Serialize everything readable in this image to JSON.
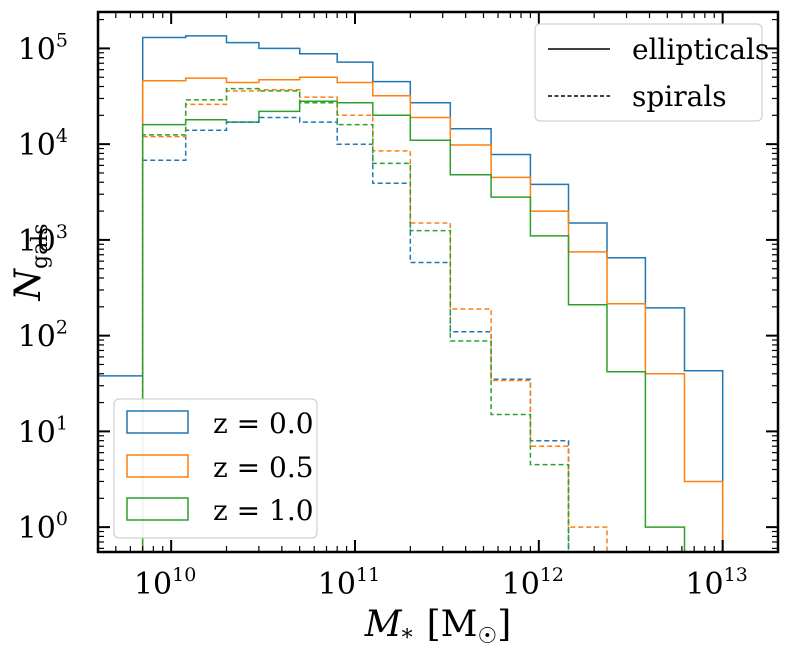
{
  "chart_data": {
    "type": "step-histogram",
    "xscale": "log",
    "yscale": "log",
    "xlim": [
      4000000000.0,
      20000000000000.0
    ],
    "ylim": [
      0.55,
      240000.0
    ],
    "xlabel": {
      "main": "M",
      "sub": "*",
      "unit": "[M",
      "unit_sub": "☉",
      "unit_close": "]"
    },
    "ylabel": {
      "main": "N",
      "sub": "gals"
    },
    "xticks": [
      {
        "value": 10000000000.0,
        "base": "10",
        "exp": "10"
      },
      {
        "value": 100000000000.0,
        "base": "10",
        "exp": "11"
      },
      {
        "value": 1000000000000.0,
        "base": "10",
        "exp": "12"
      },
      {
        "value": 10000000000000.0,
        "base": "10",
        "exp": "13"
      }
    ],
    "yticks": [
      {
        "value": 1,
        "base": "10",
        "exp": "0"
      },
      {
        "value": 10,
        "base": "10",
        "exp": "1"
      },
      {
        "value": 100,
        "base": "10",
        "exp": "2"
      },
      {
        "value": 1000,
        "base": "10",
        "exp": "3"
      },
      {
        "value": 10000,
        "base": "10",
        "exp": "4"
      },
      {
        "value": 100000,
        "base": "10",
        "exp": "5"
      }
    ],
    "bin_edges": [
      4000000000.0,
      7000000000.0,
      12000000000.0,
      20000000000.0,
      30000000000.0,
      50000000000.0,
      80000000000.0,
      125000000000.0,
      200000000000.0,
      330000000000.0,
      550000000000.0,
      900000000000.0,
      1450000000000.0,
      2350000000000.0,
      3800000000000.0,
      6200000000000.0,
      10000000000000.0
    ],
    "series": [
      {
        "name": "z = 0.0 ellipticals",
        "redshift": "0.0",
        "style": "solid",
        "color": "#1f77b4",
        "values": [
          38,
          130000,
          135000,
          115000,
          100000,
          88000,
          72000,
          45000,
          27000,
          14500,
          7800,
          3800,
          1500,
          650,
          195,
          43
        ]
      },
      {
        "name": "z = 0.5 ellipticals",
        "redshift": "0.5",
        "style": "solid",
        "color": "#ff7f0e",
        "values": [
          0,
          46000,
          49000,
          44000,
          47000,
          50000,
          44000,
          32000,
          19000,
          9800,
          4500,
          2000,
          750,
          215,
          40,
          3
        ]
      },
      {
        "name": "z = 1.0 ellipticals",
        "redshift": "1.0",
        "style": "solid",
        "color": "#2ca02c",
        "values": [
          0,
          16000,
          18000,
          17000,
          22000,
          28000,
          27000,
          20000,
          11000,
          4800,
          2800,
          1100,
          210,
          42,
          1,
          0
        ]
      },
      {
        "name": "z = 0.0 spirals",
        "redshift": "0.0",
        "style": "dashed",
        "color": "#1f77b4",
        "values": [
          0,
          6800,
          14000,
          17000,
          19000,
          17000,
          10000,
          3900,
          580,
          110,
          35,
          8,
          0,
          0,
          0,
          0
        ]
      },
      {
        "name": "z = 0.5 spirals",
        "redshift": "0.5",
        "style": "dashed",
        "color": "#ff7f0e",
        "values": [
          0,
          12000,
          26000,
          36000,
          37000,
          31000,
          20000,
          8500,
          1500,
          190,
          34,
          7,
          1,
          0,
          0,
          0
        ]
      },
      {
        "name": "z = 1.0 spirals",
        "redshift": "1.0",
        "style": "dashed",
        "color": "#2ca02c",
        "values": [
          0,
          12500,
          29000,
          38000,
          36000,
          27000,
          16000,
          6300,
          1250,
          88,
          15,
          4.5,
          0,
          0,
          0,
          0
        ]
      }
    ],
    "legend_linestyle": {
      "position": "top-right",
      "entries": [
        {
          "label": "ellipticals",
          "style": "solid"
        },
        {
          "label": "spirals",
          "style": "dashed"
        }
      ]
    },
    "legend_redshift": {
      "position": "bottom-left",
      "entries": [
        {
          "label": "z = 0.0",
          "color": "#1f77b4"
        },
        {
          "label": "z = 0.5",
          "color": "#ff7f0e"
        },
        {
          "label": "z = 1.0",
          "color": "#2ca02c"
        }
      ]
    }
  }
}
